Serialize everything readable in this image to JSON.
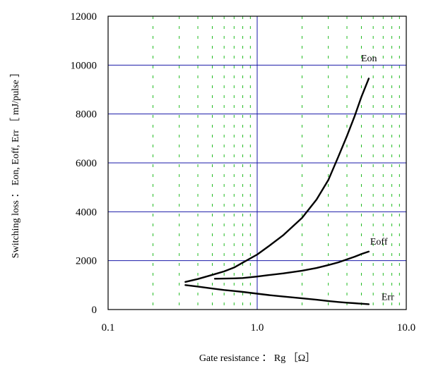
{
  "chart_data": {
    "type": "line",
    "title": "",
    "xlabel": "Gate resistance ： Rg ［Ω］",
    "ylabel": "Switching loss ： Eon, Eoff, Err ［ mJ/pulse ］",
    "x_scale": "log",
    "xlim": [
      0.1,
      10.0
    ],
    "ylim": [
      0,
      12000
    ],
    "x_ticks": [
      "0.1",
      "1.0",
      "10.0"
    ],
    "y_ticks": [
      "0",
      "2000",
      "4000",
      "6000",
      "8000",
      "10000",
      "12000"
    ],
    "grid": {
      "major": true,
      "major_color": "#1a1aa8",
      "minor_x": true,
      "minor_x_color": "#22bb22",
      "minor_x_style": "dashed"
    },
    "series": [
      {
        "name": "Eon",
        "color": "#000000",
        "x": [
          0.33,
          0.4,
          0.5,
          0.6,
          0.7,
          0.8,
          1.0,
          1.2,
          1.5,
          2.0,
          2.5,
          3.0,
          3.5,
          4.0,
          4.5,
          5.0,
          5.6
        ],
        "y": [
          1130,
          1250,
          1420,
          1560,
          1720,
          1920,
          2250,
          2600,
          3050,
          3750,
          4500,
          5300,
          6250,
          7100,
          7900,
          8700,
          9450
        ]
      },
      {
        "name": "Eoff",
        "color": "#000000",
        "x": [
          0.52,
          0.6,
          0.7,
          0.8,
          1.0,
          1.2,
          1.5,
          2.0,
          2.5,
          3.0,
          3.5,
          4.0,
          4.5,
          5.0,
          5.6
        ],
        "y": [
          1260,
          1265,
          1275,
          1290,
          1350,
          1410,
          1480,
          1590,
          1700,
          1820,
          1930,
          2050,
          2160,
          2270,
          2370
        ]
      },
      {
        "name": "Err",
        "color": "#000000",
        "x": [
          0.33,
          0.4,
          0.5,
          0.6,
          0.7,
          0.8,
          1.0,
          1.2,
          1.5,
          2.0,
          2.5,
          3.0,
          3.5,
          4.0,
          4.5,
          5.0,
          5.6
        ],
        "y": [
          1000,
          940,
          860,
          800,
          760,
          720,
          650,
          590,
          530,
          460,
          400,
          350,
          310,
          280,
          260,
          240,
          220
        ]
      }
    ]
  }
}
